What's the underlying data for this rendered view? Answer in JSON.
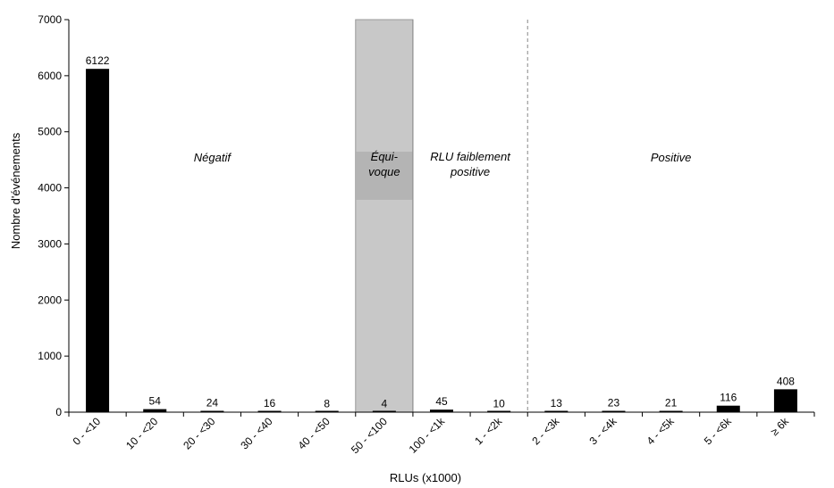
{
  "chart_data": {
    "type": "bar",
    "xlabel": "RLUs (x1000)",
    "ylabel": "Nombre d'événements",
    "ylim": [
      0,
      7000
    ],
    "yticks": [
      0,
      1000,
      2000,
      3000,
      4000,
      5000,
      6000,
      7000
    ],
    "categories": [
      "0 - <10",
      "10 - <20",
      "20 - <30",
      "30 - <40",
      "40 - <50",
      "50 - <100",
      "100 - <1k",
      "1 - <2k",
      "2 - <3k",
      "3 - <4k",
      "4 - <5k",
      "5 - <6k",
      "≥ 6k"
    ],
    "values": [
      6122,
      54,
      24,
      16,
      8,
      4,
      45,
      10,
      13,
      23,
      21,
      116,
      408
    ],
    "bar_color": "#000000",
    "regions": [
      {
        "label_lines": [
          "Négatif"
        ],
        "from": 0,
        "to": 5,
        "shaded": false
      },
      {
        "label_lines": [
          "Équi-",
          "voque"
        ],
        "from": 5,
        "to": 6,
        "shaded": true,
        "fill": "#c8c8c8",
        "label_fill": "#b4b4b4"
      },
      {
        "label_lines": [
          "RLU faiblement",
          "positive"
        ],
        "from": 6,
        "to": 8,
        "shaded": false
      },
      {
        "label_lines": [
          "Positive"
        ],
        "from": 8,
        "to": 13,
        "shaded": false
      }
    ],
    "grid": false
  }
}
